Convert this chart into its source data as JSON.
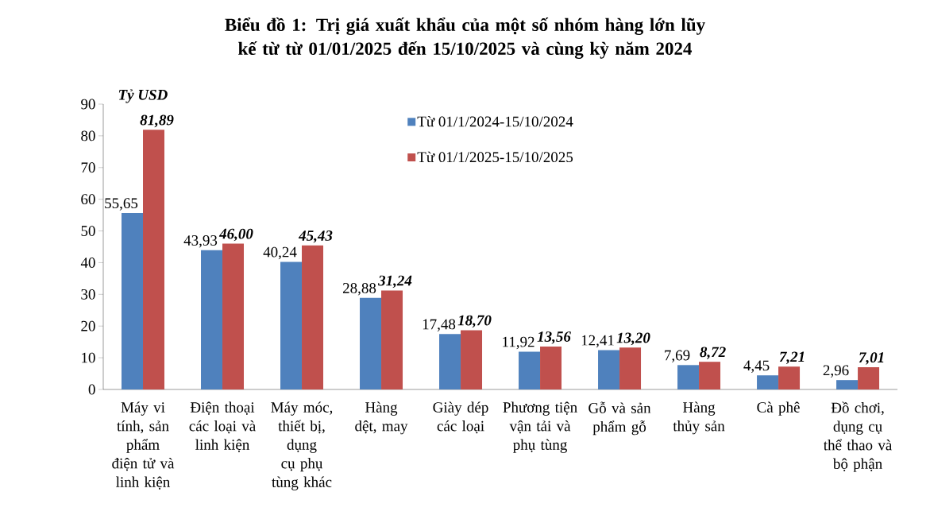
{
  "chart_data": {
    "type": "bar",
    "title": "Biểu đồ 1: Trị giá xuất khẩu của một số nhóm hàng lớn lũy kế từ từ 01/01/2025 đến 15/10/2025 và cùng kỳ năm 2024",
    "ylabel": "Tỷ USD",
    "categories": [
      "Máy vi tính, sản phẩm điện tử và linh kiện",
      "Điện thoại các loại và linh kiện",
      "Máy móc, thiết bị, dụng cụ phụ tùng khác",
      "Hàng dệt, may",
      "Giày dép các loại",
      "Phương tiện vận tải và phụ tùng",
      "Gỗ và sản phẩm gỗ",
      "Hàng thủy sản",
      "Cà phê",
      "Đồ chơi, dụng cụ thể thao và bộ phận"
    ],
    "series": [
      {
        "name": "Từ 01/1/2024-15/10/2024",
        "color": "#4f81bd",
        "values": [
          55.65,
          43.93,
          40.24,
          28.88,
          17.48,
          11.92,
          12.41,
          7.69,
          4.45,
          2.96
        ],
        "value_labels": [
          "55,65",
          "43,93",
          "40,24",
          "28,88",
          "17,48",
          "11,92",
          "12,41",
          "7,69",
          "4,45",
          "2,96"
        ]
      },
      {
        "name": "Từ 01/1/2025-15/10/2025",
        "color": "#c0504d",
        "values": [
          81.89,
          46.0,
          45.43,
          31.24,
          18.7,
          13.56,
          13.2,
          8.72,
          7.21,
          7.01
        ],
        "value_labels": [
          "81,89",
          "46,00",
          "45,43",
          "31,24",
          "18,70",
          "13,56",
          "13,20",
          "8,72",
          "7,21",
          "7,01"
        ]
      }
    ],
    "ylim": [
      0,
      90
    ],
    "yticks": [
      0,
      10,
      20,
      30,
      40,
      50,
      60,
      70,
      80,
      90
    ],
    "grid": false,
    "legend": "top right"
  }
}
